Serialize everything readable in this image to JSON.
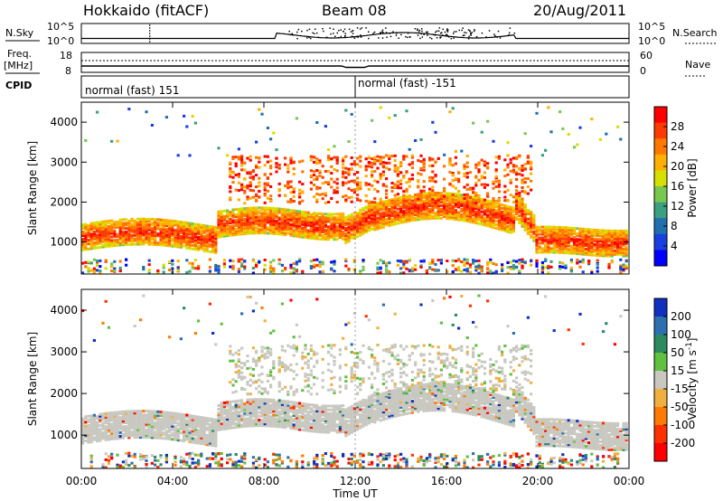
{
  "header": {
    "station": "Hokkaido (fitACF)",
    "beam": "Beam 08",
    "date": "20/Aug/2011"
  },
  "status_panels": {
    "nsky_label": "N.Sky",
    "nsearch_label": "N.Search",
    "freq_label_line1": "Freq.",
    "freq_label_line2": "[MHz]",
    "nave_label": "Nave",
    "cpid_label": "CPID",
    "left_top_ticks": [
      "10^5",
      "10^0"
    ],
    "right_top_ticks": [
      "10^5",
      "10^0"
    ],
    "left_freq_ticks": [
      "18",
      "8"
    ],
    "right_nave_ticks": [
      "60",
      "0"
    ],
    "cpid_segments": [
      {
        "label": "normal (fast) 151",
        "start_hour": 0,
        "end_hour": 12
      },
      {
        "label": "normal (fast) -151",
        "start_hour": 12,
        "end_hour": 24
      }
    ]
  },
  "x_axis": {
    "label": "Time UT",
    "ticks": [
      "00:00",
      "04:00",
      "08:00",
      "12:00",
      "16:00",
      "20:00",
      "00:00"
    ],
    "hours": [
      0,
      4,
      8,
      12,
      16,
      20,
      24
    ]
  },
  "chart_data": [
    {
      "type": "heatmap",
      "name": "power",
      "ylabel": "Slant Range [km]",
      "xlabel": "Time UT",
      "ylim": [
        200,
        4500
      ],
      "xlim_hours": [
        0,
        24
      ],
      "y_ticks": [
        1000,
        2000,
        3000,
        4000
      ],
      "colorbar": {
        "label": "Power [dB]",
        "ticks": [
          "28",
          "24",
          "20",
          "16",
          "12",
          "8",
          "4"
        ],
        "colors": [
          "#ff0000",
          "#ff3a00",
          "#ff7800",
          "#ffb000",
          "#d6e000",
          "#78c850",
          "#3aa080",
          "#2070b0",
          "#1840e0",
          "#0000ff"
        ]
      },
      "features": [
        {
          "desc": "main band",
          "hours": [
            0,
            6
          ],
          "range_km": [
            800,
            1400
          ]
        },
        {
          "desc": "main band",
          "hours": [
            6,
            11.5
          ],
          "range_km": [
            1200,
            1800
          ]
        },
        {
          "desc": "upper streaks",
          "hours": [
            6.5,
            12
          ],
          "range_km": [
            2000,
            3200
          ]
        },
        {
          "desc": "main band",
          "hours": [
            12,
            19
          ],
          "range_km": [
            1200,
            2300
          ]
        },
        {
          "desc": "tilted streaks",
          "hours": [
            13,
            19.5
          ],
          "range_km": [
            1800,
            3000
          ]
        },
        {
          "desc": "main band",
          "hours": [
            19.5,
            24
          ],
          "range_km": [
            700,
            1400
          ]
        }
      ]
    },
    {
      "type": "heatmap",
      "name": "velocity",
      "ylabel": "Slant Range [km]",
      "xlabel": "Time UT",
      "ylim": [
        200,
        4500
      ],
      "xlim_hours": [
        0,
        24
      ],
      "y_ticks": [
        1000,
        2000,
        3000,
        4000
      ],
      "colorbar": {
        "label": "Velocity [m s^-1]",
        "ticks": [
          "200",
          "100",
          "50",
          "15",
          "-15",
          "-50",
          "-100",
          "-200"
        ],
        "colors": [
          "#1030c0",
          "#2c70b0",
          "#2c8a60",
          "#60c040",
          "#c8c8c0",
          "#f0b040",
          "#ff7a00",
          "#ff3000",
          "#ff0000"
        ]
      }
    }
  ],
  "colors": {
    "background": "#ffffff",
    "ground_scatter": "#c8c8c0"
  }
}
